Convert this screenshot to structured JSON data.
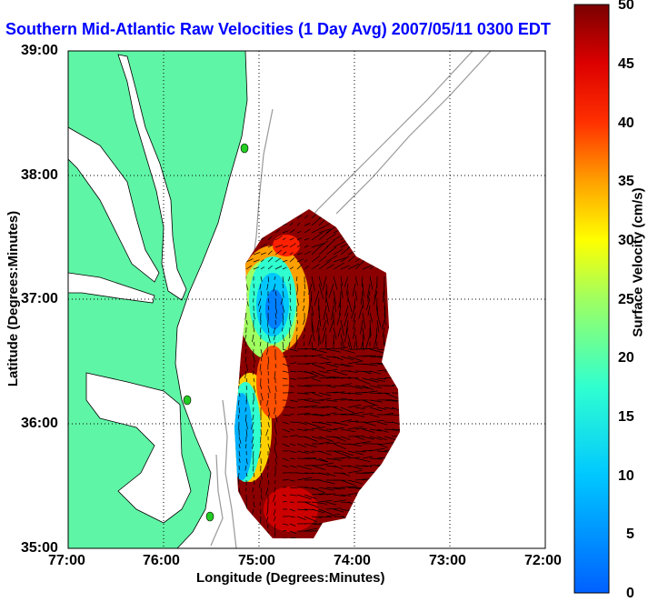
{
  "title": "Southern Mid-Atlantic Raw Velocities (1 Day Avg) 2007/05/11 0300 EDT",
  "axes": {
    "xlabel": "Longitude (Degrees:Minutes)",
    "ylabel": "Latitude (Degrees:Minutes)",
    "xticks": [
      "77:00",
      "76:00",
      "75:00",
      "74:00",
      "73:00",
      "72:00"
    ],
    "yticks": [
      "39:00",
      "38:00",
      "37:00",
      "36:00",
      "35:00"
    ]
  },
  "colorbar": {
    "label": "Surface Velocity (cm/s)",
    "ticks": [
      "50",
      "45",
      "40",
      "35",
      "30",
      "25",
      "20",
      "15",
      "10",
      "5",
      "0"
    ],
    "min": 0,
    "max": 50,
    "colormap": "jet"
  },
  "colors": {
    "land": "#5ff5a6",
    "title": "#0000ff",
    "bathymetry": "#999999",
    "station": "#22cc22"
  },
  "chart_data": {
    "type": "heatmap",
    "xlim": [
      -77,
      -72
    ],
    "ylim": [
      35,
      39
    ],
    "value_range_cm_s": [
      0,
      50
    ],
    "regions": [
      {
        "name": "northeast lobe",
        "approx_speed_cm_s": 45
      },
      {
        "name": "western nearshore band",
        "approx_speed_cm_s": 10
      },
      {
        "name": "southeast Gulf Stream region",
        "approx_speed_cm_s": 50
      }
    ],
    "stations": [
      {
        "lat": 38.2,
        "lon": -75.15
      },
      {
        "lat": 36.2,
        "lon": -75.75
      },
      {
        "lat": 35.3,
        "lon": -75.5
      }
    ]
  }
}
